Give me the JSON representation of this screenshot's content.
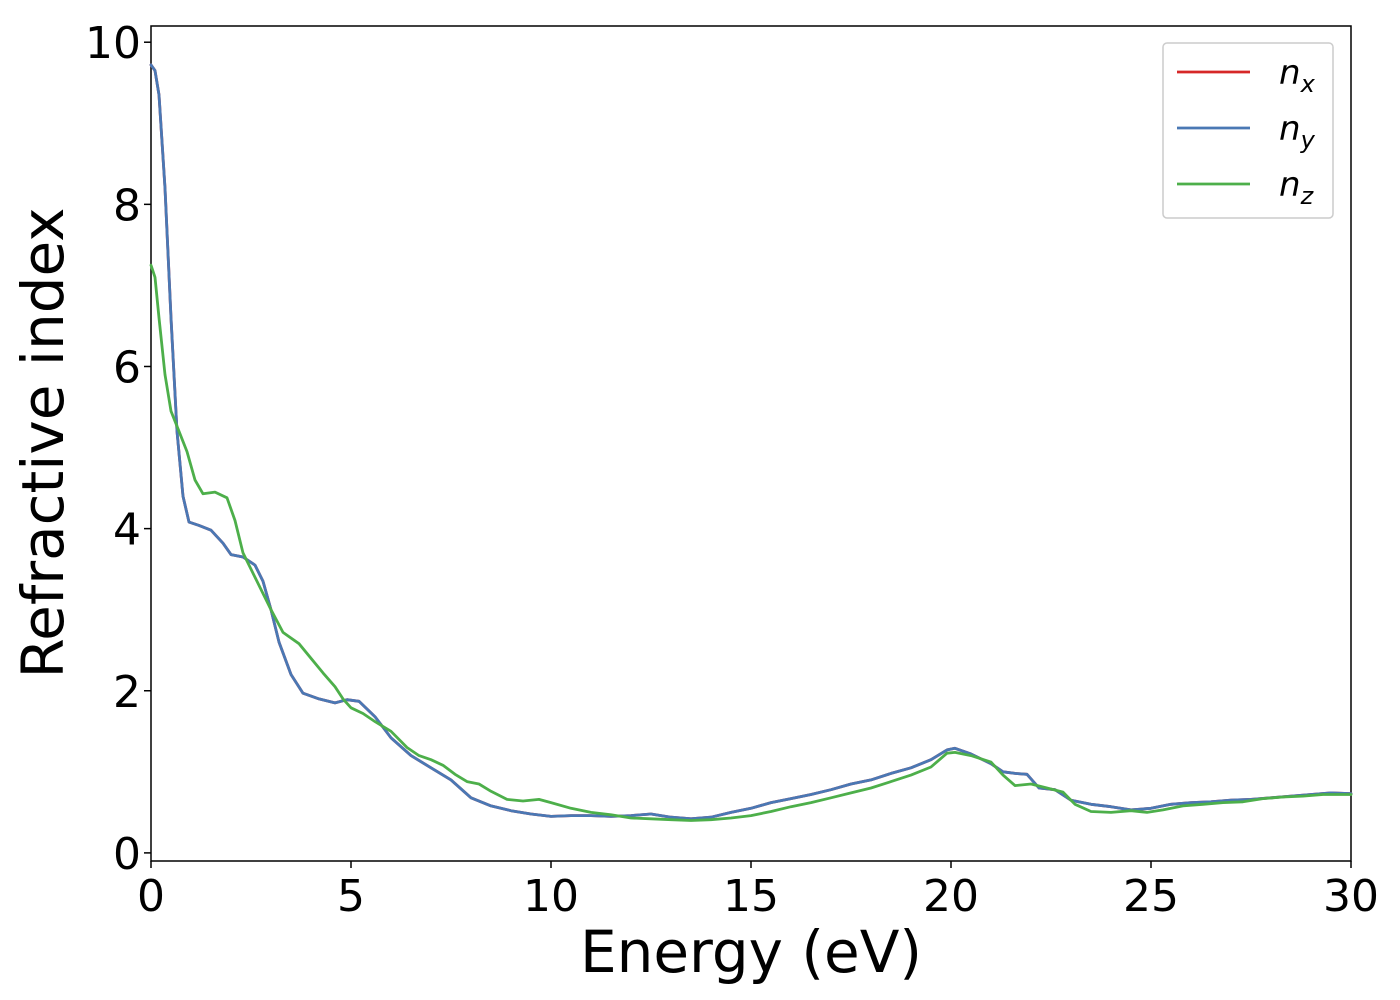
{
  "chart_data": {
    "type": "line",
    "xlabel": "Energy (eV)",
    "ylabel": "Refractive index",
    "xlim": [
      0,
      30
    ],
    "ylim": [
      -0.1,
      10.2
    ],
    "xticks": [
      0,
      5,
      10,
      15,
      20,
      25,
      30
    ],
    "yticks": [
      0,
      2,
      4,
      6,
      8,
      10
    ],
    "grid": false,
    "legend_position": "top-right",
    "series": [
      {
        "name": "n",
        "subscript": "x",
        "color": "#d62728",
        "points": [
          [
            0,
            9.72
          ],
          [
            0.1,
            9.65
          ],
          [
            0.2,
            9.35
          ],
          [
            0.35,
            8.2
          ],
          [
            0.5,
            6.6
          ],
          [
            0.65,
            5.2
          ],
          [
            0.8,
            4.4
          ],
          [
            0.95,
            4.08
          ],
          [
            1.2,
            4.04
          ],
          [
            1.5,
            3.98
          ],
          [
            1.8,
            3.82
          ],
          [
            2.0,
            3.68
          ],
          [
            2.3,
            3.65
          ],
          [
            2.6,
            3.55
          ],
          [
            2.8,
            3.35
          ],
          [
            3.0,
            3.0
          ],
          [
            3.2,
            2.6
          ],
          [
            3.5,
            2.2
          ],
          [
            3.8,
            1.97
          ],
          [
            4.2,
            1.9
          ],
          [
            4.6,
            1.85
          ],
          [
            4.9,
            1.89
          ],
          [
            5.2,
            1.87
          ],
          [
            5.6,
            1.68
          ],
          [
            6.0,
            1.42
          ],
          [
            6.5,
            1.2
          ],
          [
            7.0,
            1.05
          ],
          [
            7.5,
            0.9
          ],
          [
            8.0,
            0.68
          ],
          [
            8.5,
            0.58
          ],
          [
            9.0,
            0.52
          ],
          [
            9.5,
            0.48
          ],
          [
            10.0,
            0.45
          ],
          [
            10.5,
            0.46
          ],
          [
            11.0,
            0.46
          ],
          [
            11.5,
            0.45
          ],
          [
            12.0,
            0.46
          ],
          [
            12.5,
            0.48
          ],
          [
            13.0,
            0.44
          ],
          [
            13.5,
            0.42
          ],
          [
            14.0,
            0.44
          ],
          [
            14.5,
            0.5
          ],
          [
            15.0,
            0.55
          ],
          [
            15.5,
            0.62
          ],
          [
            16.0,
            0.67
          ],
          [
            16.5,
            0.72
          ],
          [
            17.0,
            0.78
          ],
          [
            17.5,
            0.85
          ],
          [
            18.0,
            0.9
          ],
          [
            18.5,
            0.98
          ],
          [
            19.0,
            1.05
          ],
          [
            19.5,
            1.15
          ],
          [
            19.9,
            1.27
          ],
          [
            20.1,
            1.29
          ],
          [
            20.5,
            1.22
          ],
          [
            21.0,
            1.1
          ],
          [
            21.3,
            1.0
          ],
          [
            21.6,
            0.98
          ],
          [
            21.9,
            0.97
          ],
          [
            22.2,
            0.8
          ],
          [
            22.6,
            0.78
          ],
          [
            23.0,
            0.65
          ],
          [
            23.5,
            0.6
          ],
          [
            24.0,
            0.57
          ],
          [
            24.5,
            0.53
          ],
          [
            25.0,
            0.55
          ],
          [
            25.5,
            0.6
          ],
          [
            26.0,
            0.62
          ],
          [
            26.5,
            0.63
          ],
          [
            27.0,
            0.65
          ],
          [
            27.5,
            0.66
          ],
          [
            28.0,
            0.68
          ],
          [
            28.5,
            0.7
          ],
          [
            29.0,
            0.72
          ],
          [
            29.5,
            0.74
          ],
          [
            30.0,
            0.73
          ]
        ]
      },
      {
        "name": "n",
        "subscript": "y",
        "color": "#4a78b4",
        "points": [
          [
            0,
            9.72
          ],
          [
            0.1,
            9.65
          ],
          [
            0.2,
            9.35
          ],
          [
            0.35,
            8.2
          ],
          [
            0.5,
            6.6
          ],
          [
            0.65,
            5.2
          ],
          [
            0.8,
            4.4
          ],
          [
            0.95,
            4.08
          ],
          [
            1.2,
            4.04
          ],
          [
            1.5,
            3.98
          ],
          [
            1.8,
            3.82
          ],
          [
            2.0,
            3.68
          ],
          [
            2.3,
            3.65
          ],
          [
            2.6,
            3.55
          ],
          [
            2.8,
            3.35
          ],
          [
            3.0,
            3.0
          ],
          [
            3.2,
            2.6
          ],
          [
            3.5,
            2.2
          ],
          [
            3.8,
            1.97
          ],
          [
            4.2,
            1.9
          ],
          [
            4.6,
            1.85
          ],
          [
            4.9,
            1.89
          ],
          [
            5.2,
            1.87
          ],
          [
            5.6,
            1.68
          ],
          [
            6.0,
            1.42
          ],
          [
            6.5,
            1.2
          ],
          [
            7.0,
            1.05
          ],
          [
            7.5,
            0.9
          ],
          [
            8.0,
            0.68
          ],
          [
            8.5,
            0.58
          ],
          [
            9.0,
            0.52
          ],
          [
            9.5,
            0.48
          ],
          [
            10.0,
            0.45
          ],
          [
            10.5,
            0.46
          ],
          [
            11.0,
            0.46
          ],
          [
            11.5,
            0.45
          ],
          [
            12.0,
            0.46
          ],
          [
            12.5,
            0.48
          ],
          [
            13.0,
            0.44
          ],
          [
            13.5,
            0.42
          ],
          [
            14.0,
            0.44
          ],
          [
            14.5,
            0.5
          ],
          [
            15.0,
            0.55
          ],
          [
            15.5,
            0.62
          ],
          [
            16.0,
            0.67
          ],
          [
            16.5,
            0.72
          ],
          [
            17.0,
            0.78
          ],
          [
            17.5,
            0.85
          ],
          [
            18.0,
            0.9
          ],
          [
            18.5,
            0.98
          ],
          [
            19.0,
            1.05
          ],
          [
            19.5,
            1.15
          ],
          [
            19.9,
            1.27
          ],
          [
            20.1,
            1.29
          ],
          [
            20.5,
            1.22
          ],
          [
            21.0,
            1.1
          ],
          [
            21.3,
            1.0
          ],
          [
            21.6,
            0.98
          ],
          [
            21.9,
            0.97
          ],
          [
            22.2,
            0.8
          ],
          [
            22.6,
            0.78
          ],
          [
            23.0,
            0.65
          ],
          [
            23.5,
            0.6
          ],
          [
            24.0,
            0.57
          ],
          [
            24.5,
            0.53
          ],
          [
            25.0,
            0.55
          ],
          [
            25.5,
            0.6
          ],
          [
            26.0,
            0.62
          ],
          [
            26.5,
            0.63
          ],
          [
            27.0,
            0.65
          ],
          [
            27.5,
            0.66
          ],
          [
            28.0,
            0.68
          ],
          [
            28.5,
            0.7
          ],
          [
            29.0,
            0.72
          ],
          [
            29.5,
            0.74
          ],
          [
            30.0,
            0.73
          ]
        ]
      },
      {
        "name": "n",
        "subscript": "z",
        "color": "#4daf4a",
        "points": [
          [
            0,
            7.25
          ],
          [
            0.1,
            7.1
          ],
          [
            0.2,
            6.6
          ],
          [
            0.35,
            5.9
          ],
          [
            0.5,
            5.45
          ],
          [
            0.7,
            5.2
          ],
          [
            0.9,
            4.95
          ],
          [
            1.1,
            4.6
          ],
          [
            1.3,
            4.43
          ],
          [
            1.6,
            4.45
          ],
          [
            1.9,
            4.38
          ],
          [
            2.1,
            4.1
          ],
          [
            2.3,
            3.7
          ],
          [
            2.6,
            3.4
          ],
          [
            3.0,
            3.0
          ],
          [
            3.3,
            2.72
          ],
          [
            3.7,
            2.58
          ],
          [
            4.0,
            2.4
          ],
          [
            4.3,
            2.22
          ],
          [
            4.6,
            2.05
          ],
          [
            4.8,
            1.9
          ],
          [
            5.0,
            1.79
          ],
          [
            5.3,
            1.72
          ],
          [
            5.6,
            1.62
          ],
          [
            6.0,
            1.5
          ],
          [
            6.4,
            1.3
          ],
          [
            6.7,
            1.2
          ],
          [
            7.0,
            1.15
          ],
          [
            7.3,
            1.08
          ],
          [
            7.6,
            0.97
          ],
          [
            7.9,
            0.88
          ],
          [
            8.2,
            0.85
          ],
          [
            8.5,
            0.76
          ],
          [
            8.9,
            0.66
          ],
          [
            9.3,
            0.64
          ],
          [
            9.7,
            0.66
          ],
          [
            10.0,
            0.62
          ],
          [
            10.5,
            0.55
          ],
          [
            11.0,
            0.5
          ],
          [
            11.5,
            0.47
          ],
          [
            12.0,
            0.43
          ],
          [
            12.5,
            0.42
          ],
          [
            13.0,
            0.41
          ],
          [
            13.5,
            0.4
          ],
          [
            14.0,
            0.41
          ],
          [
            14.5,
            0.43
          ],
          [
            15.0,
            0.46
          ],
          [
            15.5,
            0.51
          ],
          [
            16.0,
            0.57
          ],
          [
            16.5,
            0.62
          ],
          [
            17.0,
            0.68
          ],
          [
            17.5,
            0.74
          ],
          [
            18.0,
            0.8
          ],
          [
            18.5,
            0.88
          ],
          [
            19.0,
            0.96
          ],
          [
            19.5,
            1.06
          ],
          [
            19.9,
            1.23
          ],
          [
            20.1,
            1.24
          ],
          [
            20.5,
            1.2
          ],
          [
            21.0,
            1.12
          ],
          [
            21.3,
            0.96
          ],
          [
            21.6,
            0.83
          ],
          [
            22.0,
            0.85
          ],
          [
            22.4,
            0.8
          ],
          [
            22.8,
            0.75
          ],
          [
            23.1,
            0.6
          ],
          [
            23.5,
            0.51
          ],
          [
            24.0,
            0.5
          ],
          [
            24.5,
            0.52
          ],
          [
            24.9,
            0.5
          ],
          [
            25.3,
            0.53
          ],
          [
            25.8,
            0.58
          ],
          [
            26.3,
            0.6
          ],
          [
            26.8,
            0.62
          ],
          [
            27.3,
            0.63
          ],
          [
            27.8,
            0.67
          ],
          [
            28.3,
            0.69
          ],
          [
            28.8,
            0.7
          ],
          [
            29.3,
            0.72
          ],
          [
            29.8,
            0.72
          ],
          [
            30.0,
            0.72
          ]
        ]
      }
    ]
  }
}
